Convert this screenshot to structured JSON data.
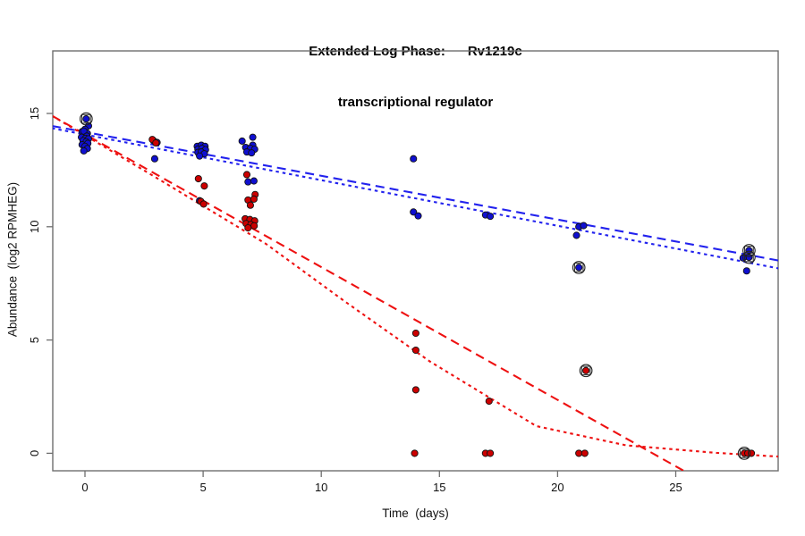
{
  "title": {
    "line1": "Extended Log Phase:      Rv1219c",
    "line2": "transcriptional regulator"
  },
  "chart_data": {
    "type": "scatter",
    "title": "Extended Log Phase: Rv1219c transcriptional regulator",
    "xlabel": "Time  (days)",
    "ylabel": "Abundance  (log2 RPMHEG)",
    "x_ticks": [
      0,
      5,
      10,
      15,
      20,
      25
    ],
    "y_ticks": [
      0,
      5,
      10,
      15
    ],
    "xlim": [
      -1.4,
      29.4
    ],
    "ylim": [
      -0.78,
      17.76
    ],
    "grid": false,
    "legend": "none",
    "colors": {
      "blue_point": "#0f0fd0",
      "red_point": "#cc0000",
      "blue_line": "#2222ee",
      "red_line": "#ee1111",
      "point_edge": "#111111",
      "axis": "#6e6e6e",
      "flag_ring": "#222222"
    },
    "series": [
      {
        "name": "blue_points",
        "color_key": "blue_point",
        "points": [
          [
            0.15,
            14.45
          ],
          [
            0.0,
            14.3
          ],
          [
            -0.12,
            14.2
          ],
          [
            0.1,
            14.12
          ],
          [
            -0.05,
            14.22
          ],
          [
            0.08,
            14.0
          ],
          [
            -0.15,
            13.95
          ],
          [
            0.02,
            13.9
          ],
          [
            0.15,
            13.88
          ],
          [
            -0.08,
            13.8
          ],
          [
            0.05,
            13.75
          ],
          [
            0.12,
            13.68
          ],
          [
            -0.12,
            13.62
          ],
          [
            0.0,
            13.55
          ],
          [
            0.1,
            13.45
          ],
          [
            -0.05,
            13.35
          ],
          [
            2.9,
            13.8
          ],
          [
            3.05,
            13.72
          ],
          [
            2.95,
            13.0
          ],
          [
            4.75,
            13.55
          ],
          [
            4.92,
            13.6
          ],
          [
            5.08,
            13.55
          ],
          [
            4.78,
            13.42
          ],
          [
            4.95,
            13.46
          ],
          [
            5.1,
            13.4
          ],
          [
            4.78,
            13.28
          ],
          [
            4.92,
            13.3
          ],
          [
            5.05,
            13.22
          ],
          [
            4.85,
            13.12
          ],
          [
            4.85,
            11.15
          ],
          [
            7.1,
            13.95
          ],
          [
            6.65,
            13.78
          ],
          [
            7.1,
            13.6
          ],
          [
            6.8,
            13.5
          ],
          [
            7.0,
            13.46
          ],
          [
            7.18,
            13.42
          ],
          [
            6.85,
            13.3
          ],
          [
            7.05,
            13.26
          ],
          [
            6.9,
            11.98
          ],
          [
            7.15,
            12.02
          ],
          [
            6.9,
            10.1
          ],
          [
            13.9,
            13.0
          ],
          [
            13.9,
            10.65
          ],
          [
            14.1,
            10.48
          ],
          [
            16.95,
            10.52
          ],
          [
            17.15,
            10.46
          ],
          [
            20.9,
            10.0
          ],
          [
            21.1,
            10.05
          ],
          [
            20.8,
            9.62
          ],
          [
            20.9,
            8.2
          ],
          [
            28.1,
            8.95
          ],
          [
            28.1,
            8.65
          ],
          [
            27.85,
            8.62
          ],
          [
            28.0,
            8.05
          ],
          [
            0.05,
            14.76
          ]
        ]
      },
      {
        "name": "red_points",
        "color_key": "red_point",
        "points": [
          [
            2.85,
            13.85
          ],
          [
            3.0,
            13.7
          ],
          [
            4.8,
            12.12
          ],
          [
            5.05,
            11.8
          ],
          [
            4.9,
            11.12
          ],
          [
            5.02,
            11.0
          ],
          [
            6.85,
            12.3
          ],
          [
            7.2,
            11.42
          ],
          [
            6.9,
            11.18
          ],
          [
            7.15,
            11.22
          ],
          [
            7.0,
            10.95
          ],
          [
            6.78,
            10.35
          ],
          [
            6.98,
            10.32
          ],
          [
            7.18,
            10.26
          ],
          [
            6.82,
            10.14
          ],
          [
            7.02,
            10.1
          ],
          [
            7.16,
            10.04
          ],
          [
            6.9,
            9.95
          ],
          [
            14.0,
            5.3
          ],
          [
            14.0,
            4.55
          ],
          [
            14.0,
            2.8
          ],
          [
            13.95,
            0.0
          ],
          [
            17.1,
            2.3
          ],
          [
            16.95,
            0.0
          ],
          [
            17.15,
            0.0
          ],
          [
            21.2,
            3.65
          ],
          [
            20.9,
            0.0
          ],
          [
            21.15,
            0.0
          ],
          [
            27.9,
            0.0
          ],
          [
            28.05,
            0.0
          ],
          [
            28.2,
            0.0
          ]
        ]
      }
    ],
    "flagged_points": [
      {
        "x": 0.05,
        "y": 14.76,
        "series": "blue_points"
      },
      {
        "x": 20.9,
        "y": 8.2,
        "series": "blue_points"
      },
      {
        "x": 21.2,
        "y": 3.65,
        "series": "red_points"
      },
      {
        "x": 28.1,
        "y": 8.95,
        "series": "blue_points"
      },
      {
        "x": 28.1,
        "y": 8.65,
        "series": "blue_points"
      },
      {
        "x": 27.9,
        "y": 0.0,
        "series": "red_points"
      }
    ],
    "fit_lines": [
      {
        "name": "blue-dashed-fit",
        "color_key": "blue_line",
        "dash": "longdash",
        "points": [
          [
            -1.4,
            14.45
          ],
          [
            29.4,
            8.5
          ]
        ]
      },
      {
        "name": "blue-dotted-fit",
        "color_key": "blue_line",
        "dash": "dotted",
        "points": [
          [
            -1.4,
            14.35
          ],
          [
            29.4,
            8.15
          ]
        ]
      },
      {
        "name": "red-dashed-fit",
        "color_key": "red_line",
        "dash": "longdash",
        "points": [
          [
            -1.4,
            14.9
          ],
          [
            25.35,
            -0.78
          ]
        ]
      },
      {
        "name": "red-dotted-fit",
        "color_key": "red_line",
        "dash": "dotted",
        "points": [
          [
            -1.4,
            14.9
          ],
          [
            2.8,
            12.3
          ],
          [
            7.65,
            9.25
          ],
          [
            11.0,
            6.7
          ],
          [
            14.6,
            4.05
          ],
          [
            19.1,
            1.2
          ],
          [
            22.9,
            0.35
          ],
          [
            26.7,
            0.02
          ],
          [
            29.4,
            -0.15
          ]
        ]
      }
    ]
  }
}
